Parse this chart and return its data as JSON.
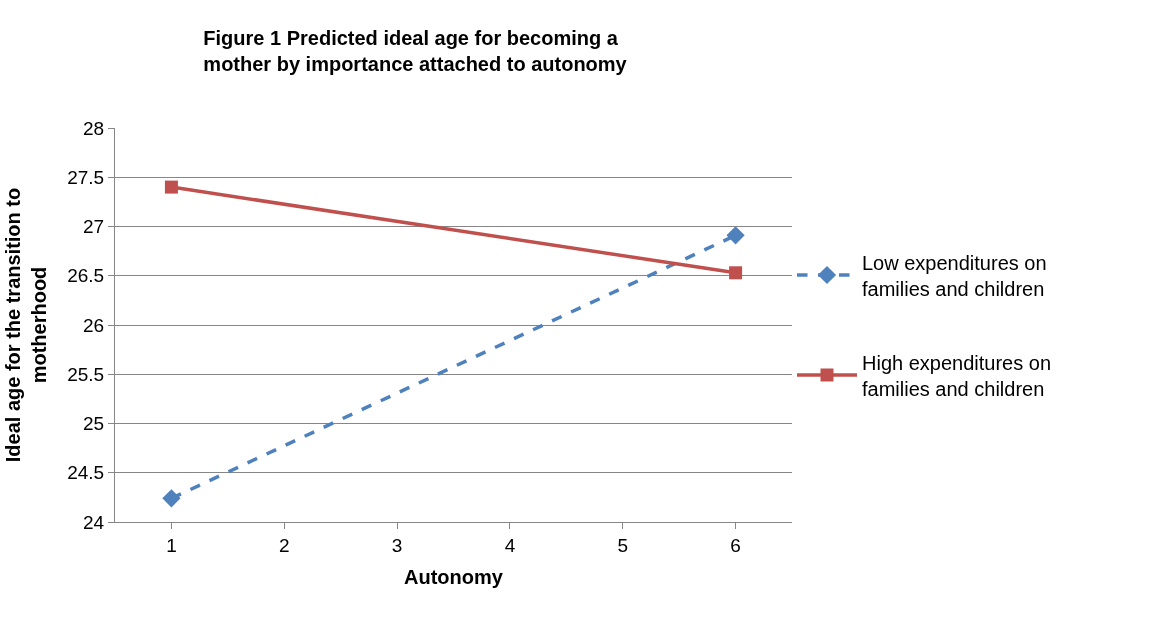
{
  "chart_data": {
    "type": "line",
    "title": "Figure 1 Predicted ideal age for becoming a mother by importance attached to autonomy",
    "xlabel": "Autonomy",
    "ylabel": "Ideal age for the transition to motherhood",
    "x": [
      1,
      6
    ],
    "xlim": [
      0.5,
      6.5
    ],
    "xticks": [
      1,
      2,
      3,
      4,
      5,
      6
    ],
    "ylim": [
      24,
      28
    ],
    "yticks": [
      24,
      24.5,
      25,
      25.5,
      26,
      26.5,
      27,
      27.5,
      28
    ],
    "grid": "y",
    "legend": "right",
    "series": [
      {
        "name": "Low expenditures on families and children",
        "color": "#4f81bd",
        "values": [
          24.24,
          26.91
        ],
        "marker": "diamond",
        "line_style": "dashed"
      },
      {
        "name": "High expenditures on families and children",
        "color": "#c0504d",
        "values": [
          27.4,
          26.53
        ],
        "marker": "square",
        "line_style": "solid"
      }
    ]
  }
}
